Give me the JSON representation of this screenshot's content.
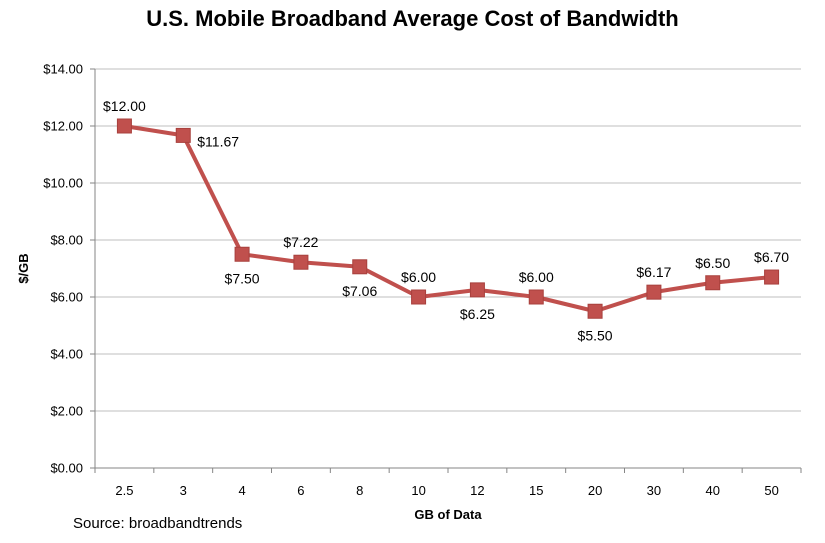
{
  "chart_data": {
    "type": "line",
    "title": "U.S. Mobile Broadband Average Cost of Bandwidth",
    "xlabel": "GB of Data",
    "ylabel": "$/GB",
    "categories": [
      "2.5",
      "3",
      "4",
      "6",
      "8",
      "10",
      "12",
      "15",
      "20",
      "30",
      "40",
      "50"
    ],
    "series": [
      {
        "values": [
          12.0,
          11.67,
          7.5,
          7.22,
          7.06,
          6.0,
          6.25,
          6.0,
          5.5,
          6.17,
          6.5,
          6.7
        ],
        "data_labels": [
          "$12.00",
          "$11.67",
          "$7.50",
          "$7.22",
          "$7.06",
          "$6.00",
          "$6.25",
          "$6.00",
          "$5.50",
          "$6.17",
          "$6.50",
          "$6.70"
        ],
        "color": "#C0504D"
      }
    ],
    "ylim": [
      0,
      14
    ],
    "yticks": [
      0,
      2,
      4,
      6,
      8,
      10,
      12,
      14
    ],
    "ytick_labels": [
      "$0.00",
      "$2.00",
      "$4.00",
      "$6.00",
      "$8.00",
      "$10.00",
      "$12.00",
      "$14.00"
    ],
    "grid": true,
    "legend": "none",
    "gridline_color": "#BFBFBF",
    "axis_color": "#868686"
  },
  "source_text": "Source:  broadbandtrends"
}
